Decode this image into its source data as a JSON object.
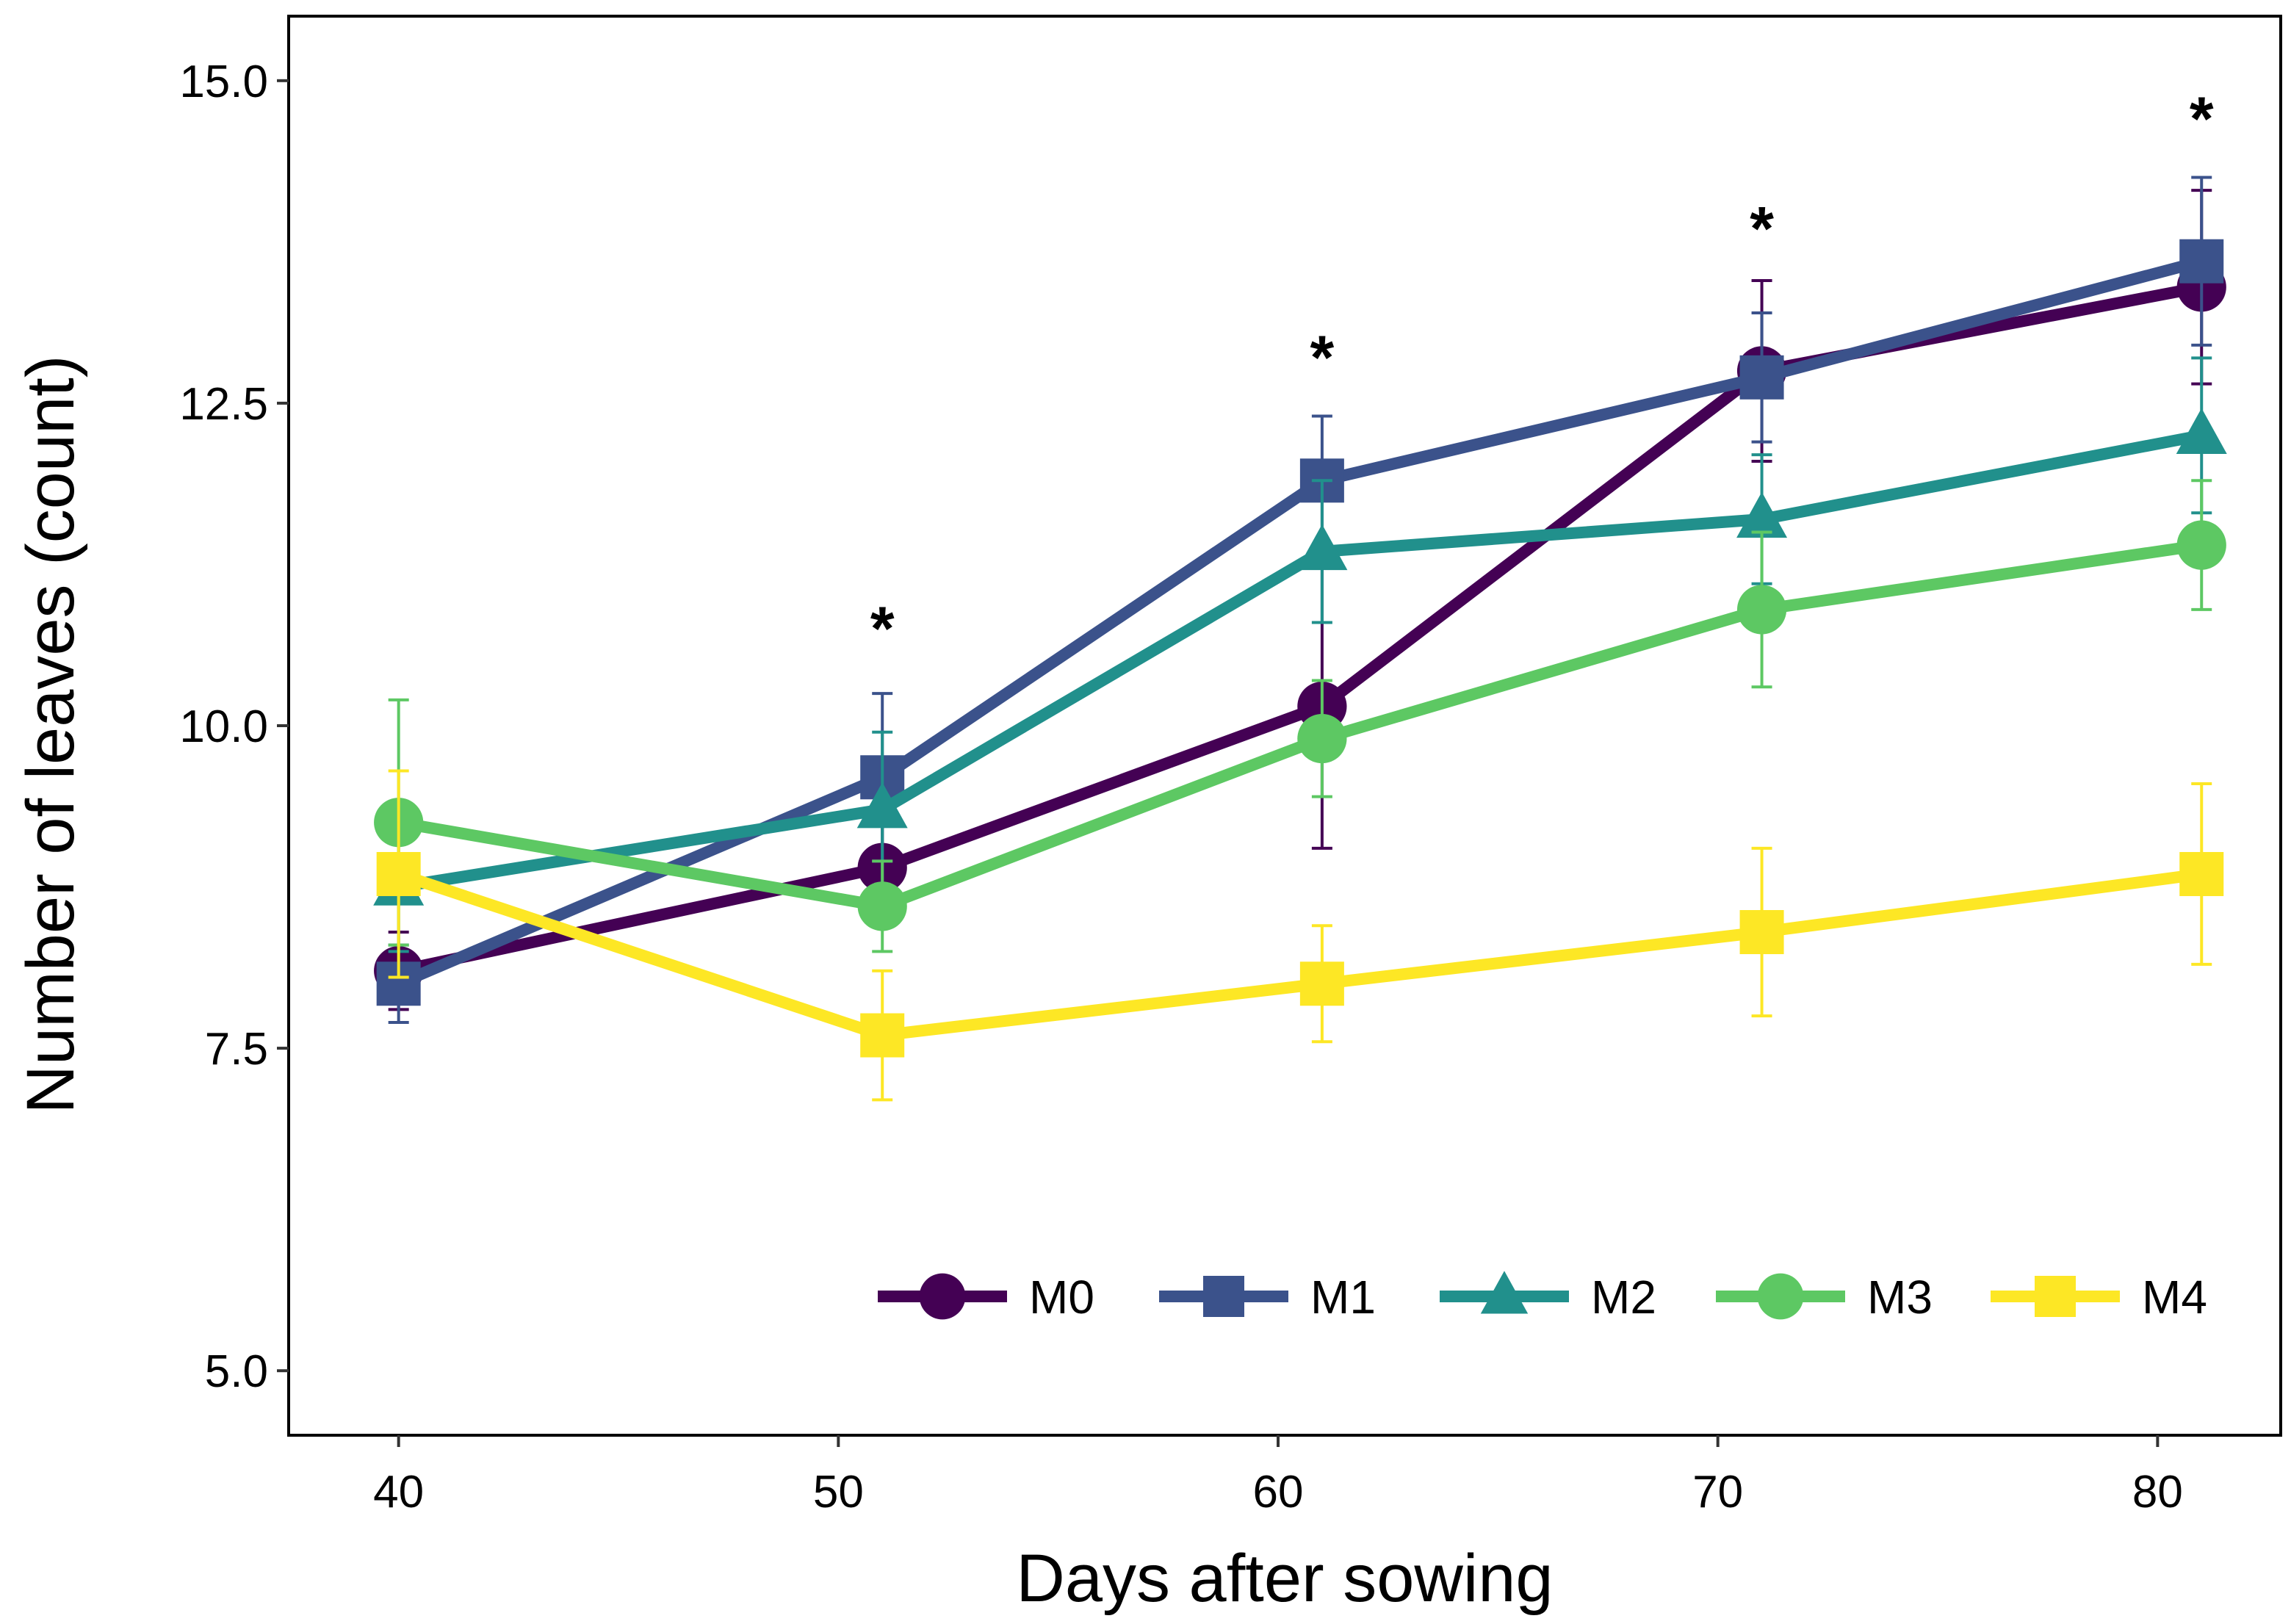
{
  "chart_data": {
    "type": "line",
    "title": "",
    "xlabel": "Days after sowing",
    "ylabel": "Number of leaves (count)",
    "xlim": [
      37.5,
      82.8
    ],
    "ylim": [
      4.5,
      15.5
    ],
    "x_ticks": [
      40,
      50,
      60,
      70,
      80
    ],
    "x_tick_labels": [
      "40",
      "50",
      "60",
      "70",
      "80"
    ],
    "y_ticks": [
      5.0,
      7.5,
      10.0,
      12.5,
      15.0
    ],
    "y_tick_labels": [
      "5.0",
      "7.5",
      "10.0",
      "12.5",
      "15.0"
    ],
    "grid": false,
    "legend_position": "bottom-right",
    "series": [
      {
        "name": "M0",
        "color": "#440154",
        "marker": "circle",
        "x": [
          40,
          51,
          61,
          71,
          81
        ],
        "values": [
          8.1,
          8.9,
          10.15,
          12.75,
          13.4
        ],
        "errors": [
          0.3,
          0.35,
          1.1,
          0.7,
          0.75
        ]
      },
      {
        "name": "M1",
        "color": "#3B528B",
        "marker": "square",
        "x": [
          40,
          51,
          61,
          71,
          81
        ],
        "values": [
          8.0,
          9.6,
          11.9,
          12.7,
          13.6
        ],
        "errors": [
          0.3,
          0.65,
          0.5,
          0.5,
          0.65
        ]
      },
      {
        "name": "M2",
        "color": "#21908C",
        "marker": "triangle",
        "x": [
          40,
          51,
          61,
          71,
          81
        ],
        "values": [
          8.75,
          9.35,
          11.35,
          11.6,
          12.25
        ],
        "errors": [
          0.5,
          0.6,
          0.55,
          0.5,
          0.6
        ]
      },
      {
        "name": "M3",
        "color": "#5DC863",
        "marker": "circle",
        "x": [
          40,
          51,
          61,
          71,
          81
        ],
        "values": [
          9.25,
          8.6,
          9.9,
          10.9,
          11.4
        ],
        "errors": [
          0.95,
          0.35,
          0.45,
          0.6,
          0.5
        ]
      },
      {
        "name": "M4",
        "color": "#FDE725",
        "marker": "square",
        "x": [
          40,
          51,
          61,
          71,
          81
        ],
        "values": [
          8.85,
          7.6,
          8.0,
          8.4,
          8.85
        ],
        "errors": [
          0.8,
          0.5,
          0.45,
          0.65,
          0.7
        ]
      }
    ],
    "annotations": [
      {
        "text": "*",
        "x": 51,
        "y": 10.75
      },
      {
        "text": "*",
        "x": 61,
        "y": 12.85
      },
      {
        "text": "*",
        "x": 71,
        "y": 13.85
      },
      {
        "text": "*",
        "x": 81,
        "y": 14.7
      }
    ]
  }
}
